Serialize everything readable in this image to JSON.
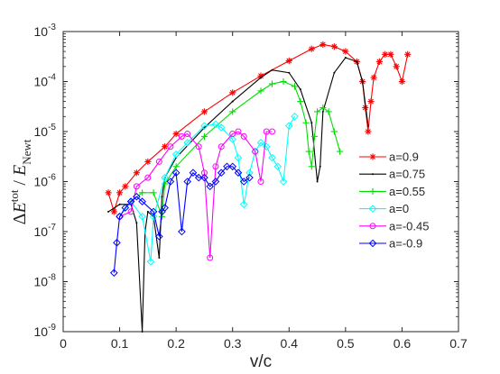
{
  "chart_data": {
    "type": "scatter",
    "title": "",
    "xlabel": "v/c",
    "ylabel": "ΔĖtot / ĖNewt",
    "ylabel_parts": {
      "delta": "Δ",
      "E": "E",
      "sup": "tot",
      "sep": " / ",
      "sub": "Newt"
    },
    "xlim": [
      0,
      0.7
    ],
    "ylim_log10": [
      -9,
      -3
    ],
    "yscale": "log",
    "x_ticks": [
      "0",
      "0.1",
      "0.2",
      "0.3",
      "0.4",
      "0.5",
      "0.6",
      "0.7"
    ],
    "y_tick_exponents": [
      "-9",
      "-8",
      "-7",
      "-6",
      "-5",
      "-4",
      "-3"
    ],
    "y_tick_base": "10",
    "legend_position": "right",
    "series": [
      {
        "name": "a=0.9",
        "color": "#ff0000",
        "marker": "asterisk",
        "x": [
          0.08,
          0.09,
          0.1,
          0.11,
          0.13,
          0.15,
          0.18,
          0.2,
          0.25,
          0.3,
          0.35,
          0.4,
          0.44,
          0.46,
          0.48,
          0.5,
          0.52,
          0.53,
          0.535,
          0.54,
          0.545,
          0.55,
          0.56,
          0.57,
          0.58,
          0.59,
          0.6,
          0.61
        ],
        "y": [
          6e-07,
          2.5e-07,
          6e-07,
          8e-07,
          1.5e-06,
          2.5e-06,
          5e-06,
          9e-06,
          2.5e-05,
          6e-05,
          0.00013,
          0.00026,
          0.00045,
          0.00055,
          0.0005,
          0.0004,
          0.00025,
          0.0001,
          3e-05,
          1e-05,
          4e-05,
          0.00012,
          0.00025,
          0.00035,
          0.00035,
          0.0002,
          0.0001,
          0.00035
        ]
      },
      {
        "name": "a=0.75",
        "color": "#000000",
        "marker": "point",
        "x": [
          0.08,
          0.1,
          0.12,
          0.13,
          0.14,
          0.145,
          0.15,
          0.16,
          0.17,
          0.175,
          0.18,
          0.2,
          0.25,
          0.3,
          0.35,
          0.37,
          0.4,
          0.42,
          0.44,
          0.45,
          0.455,
          0.46,
          0.48,
          0.5,
          0.52,
          0.53,
          0.54
        ],
        "y": [
          2.5e-07,
          3.5e-07,
          3.5e-07,
          1.5e-07,
          1e-09,
          1e-07,
          2.5e-07,
          2e-07,
          3e-08,
          5e-07,
          1.2e-06,
          3e-06,
          1.2e-05,
          4e-05,
          0.00012,
          0.00017,
          0.00015,
          7e-05,
          1.5e-05,
          1e-06,
          2e-06,
          2.5e-05,
          0.00015,
          0.0003,
          0.00025,
          0.0001,
          1.3e-05
        ]
      },
      {
        "name": "a=0.55",
        "color": "#00e000",
        "marker": "plus",
        "x": [
          0.12,
          0.14,
          0.16,
          0.175,
          0.18,
          0.2,
          0.25,
          0.3,
          0.35,
          0.37,
          0.39,
          0.41,
          0.42,
          0.43,
          0.435,
          0.44,
          0.445,
          0.45,
          0.46,
          0.47,
          0.48,
          0.49
        ],
        "y": [
          4e-07,
          6e-07,
          6e-07,
          2e-07,
          9e-07,
          2e-06,
          8e-06,
          2.5e-05,
          6.5e-05,
          9e-05,
          0.0001,
          8e-05,
          4e-05,
          1.5e-05,
          4e-06,
          2e-06,
          8e-06,
          2.5e-05,
          3e-05,
          2.5e-05,
          1e-05,
          4e-06
        ]
      },
      {
        "name": "a=0",
        "color": "#00ffff",
        "marker": "diamond",
        "x": [
          0.1,
          0.12,
          0.14,
          0.155,
          0.16,
          0.18,
          0.2,
          0.22,
          0.25,
          0.27,
          0.28,
          0.3,
          0.31,
          0.32,
          0.33,
          0.34,
          0.35,
          0.36,
          0.37,
          0.38,
          0.39,
          0.4,
          0.41
        ],
        "y": [
          2e-07,
          4e-07,
          2e-07,
          2.5e-08,
          2e-07,
          1.2e-06,
          3.5e-06,
          6e-06,
          1.3e-05,
          1.4e-05,
          1.2e-05,
          7e-06,
          3e-06,
          3.5e-07,
          1.5e-06,
          4e-06,
          6e-06,
          5e-06,
          3e-06,
          2e-06,
          1e-06,
          1.3e-05,
          2e-05
        ]
      },
      {
        "name": "a=-0.45",
        "color": "#ff00ff",
        "marker": "circle",
        "x": [
          0.1,
          0.12,
          0.13,
          0.15,
          0.17,
          0.19,
          0.21,
          0.22,
          0.24,
          0.25,
          0.26,
          0.27,
          0.28,
          0.3,
          0.31,
          0.32,
          0.34,
          0.35,
          0.36,
          0.37
        ],
        "y": [
          2e-07,
          2.5e-07,
          8e-07,
          1.2e-06,
          2.5e-06,
          5e-06,
          8e-06,
          9e-06,
          5e-06,
          1.5e-06,
          3e-08,
          2e-06,
          5e-06,
          9e-06,
          1e-05,
          8e-06,
          4e-06,
          1e-06,
          1e-05,
          1e-05
        ]
      },
      {
        "name": "a=-0.9",
        "color": "#0000ff",
        "marker": "diamond",
        "x": [
          0.09,
          0.095,
          0.1,
          0.11,
          0.12,
          0.13,
          0.14,
          0.16,
          0.17,
          0.175,
          0.18,
          0.19,
          0.2,
          0.21,
          0.22,
          0.23,
          0.24,
          0.25,
          0.26,
          0.27,
          0.28,
          0.29,
          0.3,
          0.31,
          0.32,
          0.33
        ],
        "y": [
          1.5e-08,
          6e-08,
          2e-07,
          3e-07,
          4e-07,
          5e-07,
          4e-07,
          2.5e-07,
          8e-08,
          2.5e-07,
          3e-07,
          1e-06,
          1.5e-06,
          1e-07,
          1e-06,
          1.5e-06,
          1.2e-06,
          1.2e-06,
          8e-07,
          1e-06,
          1.5e-06,
          2e-06,
          2e-06,
          1.5e-06,
          1e-06,
          1.2e-06
        ]
      }
    ]
  }
}
